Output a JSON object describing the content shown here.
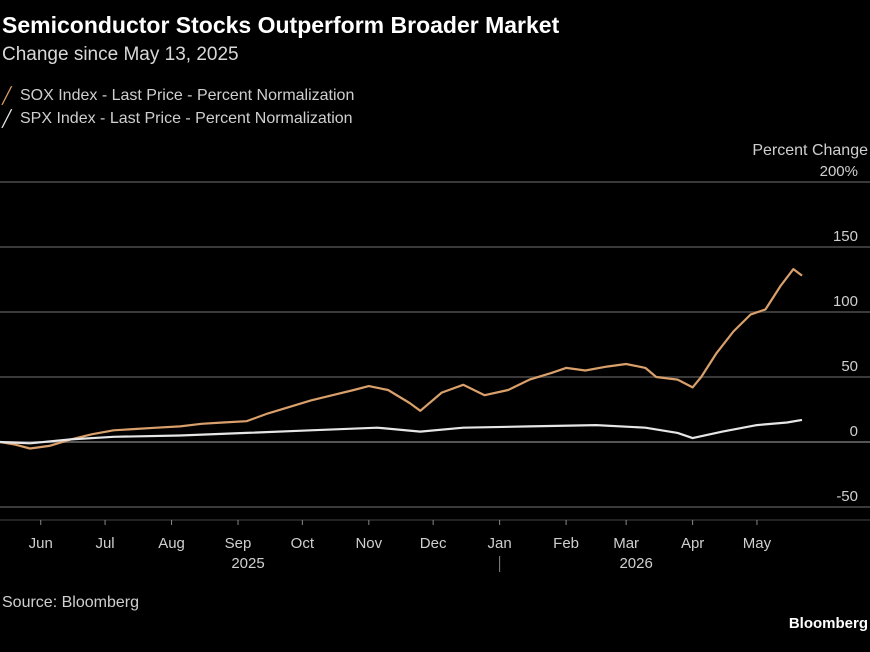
{
  "chart_data": {
    "type": "line",
    "title": "Semiconductor Stocks Outperform Broader Market",
    "subtitle": "Change since May 13, 2025",
    "ylabel": "Percent Change",
    "y_ticks": [
      "200%",
      "150",
      "100",
      "50",
      "0",
      "-50"
    ],
    "y_tick_values": [
      200,
      150,
      100,
      50,
      0,
      -50
    ],
    "ylim": [
      -60,
      200
    ],
    "grid": "horizontal",
    "legend_position": "top-left",
    "x_ticks": [
      "Jun",
      "Jul",
      "Aug",
      "Sep",
      "Oct",
      "Nov",
      "Dec",
      "Jan",
      "Feb",
      "Mar",
      "Apr",
      "May"
    ],
    "x_tick_dates": [
      "2025-06-01",
      "2025-07-01",
      "2025-08-01",
      "2025-09-01",
      "2025-10-01",
      "2025-11-01",
      "2025-12-01",
      "2026-01-01",
      "2026-02-01",
      "2026-03-01",
      "2026-04-01",
      "2026-05-01"
    ],
    "year_labels": [
      {
        "label": "2025",
        "date": "2025-09-01"
      },
      {
        "label": "2026",
        "date": "2026-03-01"
      }
    ],
    "xlim": [
      "2025-05-13",
      "2026-06-05"
    ],
    "series": [
      {
        "name": "SOX Index - Last Price - Percent Normalization",
        "color": "#d9a06b",
        "points": [
          [
            "2025-05-13",
            0
          ],
          [
            "2025-05-20",
            -2
          ],
          [
            "2025-05-27",
            -5
          ],
          [
            "2025-06-05",
            -3
          ],
          [
            "2025-06-15",
            2
          ],
          [
            "2025-06-25",
            6
          ],
          [
            "2025-07-05",
            9
          ],
          [
            "2025-07-15",
            10
          ],
          [
            "2025-07-25",
            11
          ],
          [
            "2025-08-05",
            12
          ],
          [
            "2025-08-15",
            14
          ],
          [
            "2025-08-25",
            15
          ],
          [
            "2025-09-05",
            16
          ],
          [
            "2025-09-15",
            22
          ],
          [
            "2025-09-25",
            27
          ],
          [
            "2025-10-05",
            32
          ],
          [
            "2025-10-15",
            36
          ],
          [
            "2025-10-25",
            40
          ],
          [
            "2025-11-01",
            43
          ],
          [
            "2025-11-10",
            40
          ],
          [
            "2025-11-20",
            30
          ],
          [
            "2025-11-25",
            24
          ],
          [
            "2025-12-05",
            38
          ],
          [
            "2025-12-15",
            44
          ],
          [
            "2025-12-25",
            36
          ],
          [
            "2026-01-05",
            40
          ],
          [
            "2026-01-15",
            48
          ],
          [
            "2026-01-25",
            53
          ],
          [
            "2026-02-01",
            57
          ],
          [
            "2026-02-10",
            55
          ],
          [
            "2026-02-20",
            58
          ],
          [
            "2026-03-01",
            60
          ],
          [
            "2026-03-10",
            57
          ],
          [
            "2026-03-15",
            50
          ],
          [
            "2026-03-25",
            48
          ],
          [
            "2026-04-01",
            42
          ],
          [
            "2026-04-05",
            50
          ],
          [
            "2026-04-12",
            68
          ],
          [
            "2026-04-20",
            85
          ],
          [
            "2026-04-28",
            98
          ],
          [
            "2026-05-05",
            102
          ],
          [
            "2026-05-12",
            120
          ],
          [
            "2026-05-18",
            133
          ],
          [
            "2026-05-22",
            128
          ]
        ]
      },
      {
        "name": "SPX Index - Last Price - Percent Normalization",
        "color": "#e6e6e6",
        "points": [
          [
            "2025-05-13",
            0
          ],
          [
            "2025-05-27",
            -1
          ],
          [
            "2025-06-15",
            2
          ],
          [
            "2025-07-05",
            4
          ],
          [
            "2025-08-05",
            5
          ],
          [
            "2025-09-05",
            7
          ],
          [
            "2025-10-05",
            9
          ],
          [
            "2025-11-05",
            11
          ],
          [
            "2025-11-25",
            8
          ],
          [
            "2025-12-15",
            11
          ],
          [
            "2026-01-15",
            12
          ],
          [
            "2026-02-15",
            13
          ],
          [
            "2026-03-10",
            11
          ],
          [
            "2026-03-25",
            7
          ],
          [
            "2026-04-01",
            3
          ],
          [
            "2026-04-15",
            8
          ],
          [
            "2026-05-01",
            13
          ],
          [
            "2026-05-15",
            15
          ],
          [
            "2026-05-22",
            17
          ]
        ]
      }
    ]
  },
  "legend": {
    "items": [
      {
        "label": "SOX Index - Last Price - Percent Normalization",
        "color": "#d9a06b"
      },
      {
        "label": "SPX Index - Last Price - Percent Normalization",
        "color": "#e6e6e6"
      }
    ]
  },
  "source": "Source: Bloomberg",
  "brand": "Bloomberg"
}
